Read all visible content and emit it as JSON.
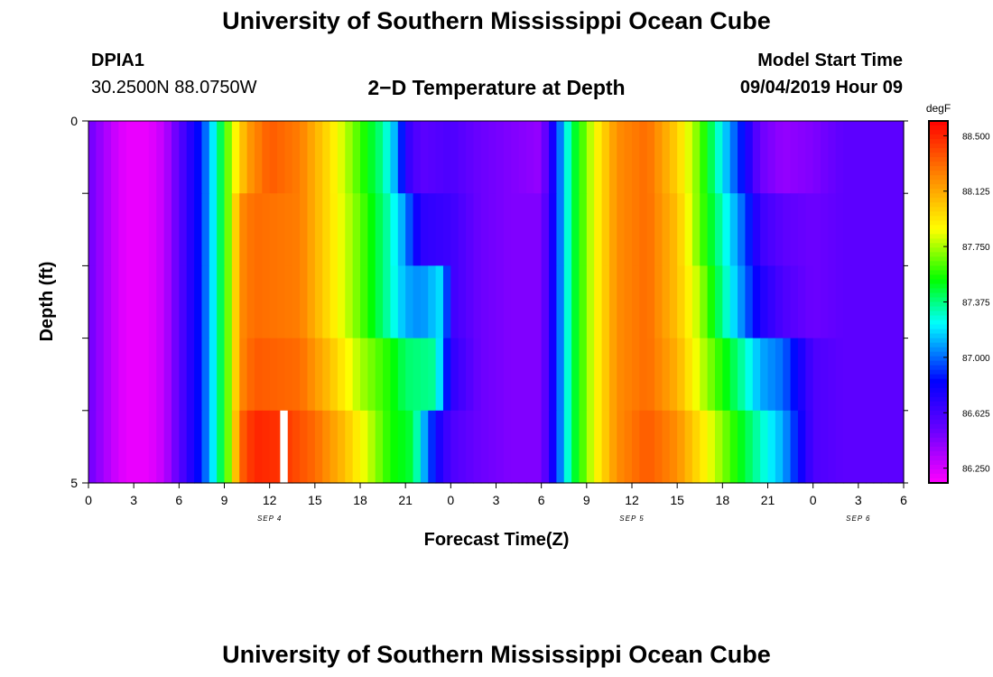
{
  "header": {
    "title": "University of Southern Mississippi Ocean Cube",
    "station_id": "DPIA1",
    "station_coords": "30.2500N 88.0750W",
    "subtitle": "2−D Temperature at Depth",
    "model_label": "Model Start Time",
    "model_time": "09/04/2019 Hour 09"
  },
  "footer": {
    "title": "University of Southern Mississippi Ocean Cube"
  },
  "chart_data": {
    "type": "heatmap",
    "title": "2−D Temperature at Depth",
    "xlabel": "Forecast Time(Z)",
    "ylabel": "Depth (ft)",
    "x_hours_from_start": [
      0,
      54
    ],
    "x_tick_labels": [
      "0",
      "3",
      "6",
      "9",
      "12",
      "15",
      "18",
      "21",
      "0",
      "3",
      "6",
      "9",
      "12",
      "15",
      "18",
      "21",
      "0",
      "3",
      "6"
    ],
    "date_labels": [
      {
        "label": "SEP 4",
        "hour": 12
      },
      {
        "label": "SEP 5",
        "hour": 36
      },
      {
        "label": "SEP 6",
        "hour": 51
      }
    ],
    "y_range": [
      0,
      5
    ],
    "y_tick_labels": [
      "0",
      "5"
    ],
    "depth_rows": 5,
    "colorbar": {
      "unit": "degF",
      "min": 86.15,
      "max": 88.6,
      "tick_values": [
        88.5,
        88.125,
        87.75,
        87.375,
        87.0,
        86.625,
        86.25
      ],
      "tick_labels": [
        "88.500",
        "88.125",
        "87.750",
        "87.375",
        "87.000",
        "86.625",
        "86.250"
      ]
    },
    "series": [
      {
        "name": "Depth 0-1 ft",
        "time_keys": [
          [
            0,
            86.5
          ],
          [
            1.5,
            86.3
          ],
          [
            2.5,
            86.2
          ],
          [
            4,
            86.2
          ],
          [
            5,
            86.3
          ],
          [
            6,
            86.55
          ],
          [
            7.5,
            86.9
          ],
          [
            8.5,
            87.3
          ],
          [
            9.5,
            87.8
          ],
          [
            10.5,
            88.15
          ],
          [
            12,
            88.35
          ],
          [
            14,
            88.25
          ],
          [
            16,
            87.95
          ],
          [
            18,
            87.6
          ],
          [
            19.5,
            87.35
          ],
          [
            20.5,
            87.05
          ],
          [
            21,
            86.7
          ],
          [
            22,
            86.55
          ],
          [
            24,
            86.6
          ],
          [
            26,
            86.5
          ],
          [
            28,
            86.45
          ],
          [
            30,
            86.4
          ],
          [
            31,
            86.9
          ],
          [
            32,
            87.4
          ],
          [
            33.5,
            87.85
          ],
          [
            35,
            88.2
          ],
          [
            37,
            88.3
          ],
          [
            39,
            88.0
          ],
          [
            40.5,
            87.65
          ],
          [
            42,
            87.2
          ],
          [
            43.5,
            86.8
          ],
          [
            44.5,
            86.5
          ],
          [
            46,
            86.4
          ],
          [
            48,
            86.45
          ],
          [
            50,
            86.55
          ],
          [
            54,
            86.55
          ]
        ]
      },
      {
        "name": "Depth 1-2 ft",
        "time_keys": [
          [
            0,
            86.5
          ],
          [
            1.5,
            86.3
          ],
          [
            2.5,
            86.2
          ],
          [
            4,
            86.2
          ],
          [
            5,
            86.3
          ],
          [
            6,
            86.55
          ],
          [
            7.5,
            86.9
          ],
          [
            8.5,
            87.3
          ],
          [
            9.5,
            87.8
          ],
          [
            10,
            88.2
          ],
          [
            11,
            88.3
          ],
          [
            14,
            88.25
          ],
          [
            16,
            87.95
          ],
          [
            18,
            87.65
          ],
          [
            20,
            87.3
          ],
          [
            21,
            87.05
          ],
          [
            22,
            86.7
          ],
          [
            24,
            86.65
          ],
          [
            26,
            86.5
          ],
          [
            28,
            86.45
          ],
          [
            30,
            86.45
          ],
          [
            31,
            86.9
          ],
          [
            32,
            87.4
          ],
          [
            33.5,
            87.85
          ],
          [
            35,
            88.2
          ],
          [
            37,
            88.3
          ],
          [
            39,
            88.05
          ],
          [
            40.5,
            87.65
          ],
          [
            42,
            87.3
          ],
          [
            43.5,
            86.95
          ],
          [
            44.5,
            86.65
          ],
          [
            46,
            86.55
          ],
          [
            48,
            86.5
          ],
          [
            50,
            86.55
          ],
          [
            54,
            86.55
          ]
        ]
      },
      {
        "name": "Depth 2-3 ft",
        "time_keys": [
          [
            0,
            86.5
          ],
          [
            1.5,
            86.3
          ],
          [
            2.5,
            86.2
          ],
          [
            4,
            86.2
          ],
          [
            5,
            86.3
          ],
          [
            6,
            86.55
          ],
          [
            7.5,
            86.9
          ],
          [
            8.5,
            87.3
          ],
          [
            9.5,
            87.8
          ],
          [
            10,
            88.2
          ],
          [
            11,
            88.3
          ],
          [
            14,
            88.25
          ],
          [
            16,
            87.95
          ],
          [
            18,
            87.65
          ],
          [
            20,
            87.3
          ],
          [
            21,
            87.1
          ],
          [
            22,
            87.05
          ],
          [
            23.5,
            87.2
          ],
          [
            24,
            86.65
          ],
          [
            26,
            86.5
          ],
          [
            28,
            86.45
          ],
          [
            30,
            86.45
          ],
          [
            31,
            86.9
          ],
          [
            32,
            87.4
          ],
          [
            33.5,
            87.85
          ],
          [
            35,
            88.2
          ],
          [
            37,
            88.3
          ],
          [
            39,
            88.05
          ],
          [
            40.5,
            87.75
          ],
          [
            42,
            87.35
          ],
          [
            43.5,
            87.0
          ],
          [
            44.5,
            86.75
          ],
          [
            46,
            86.6
          ],
          [
            48,
            86.5
          ],
          [
            50,
            86.55
          ],
          [
            54,
            86.55
          ]
        ]
      },
      {
        "name": "Depth 3-4 ft",
        "time_keys": [
          [
            0,
            86.5
          ],
          [
            1.5,
            86.3
          ],
          [
            2.5,
            86.2
          ],
          [
            4,
            86.2
          ],
          [
            5,
            86.3
          ],
          [
            6,
            86.55
          ],
          [
            7.5,
            86.9
          ],
          [
            8.5,
            87.3
          ],
          [
            9.5,
            87.8
          ],
          [
            10,
            88.2
          ],
          [
            11,
            88.35
          ],
          [
            14,
            88.3
          ],
          [
            16,
            88.05
          ],
          [
            18,
            87.75
          ],
          [
            20,
            87.55
          ],
          [
            21,
            87.4
          ],
          [
            23,
            87.35
          ],
          [
            24,
            86.7
          ],
          [
            26,
            86.5
          ],
          [
            28,
            86.45
          ],
          [
            30,
            86.45
          ],
          [
            31,
            86.9
          ],
          [
            32,
            87.4
          ],
          [
            33.5,
            87.85
          ],
          [
            35,
            88.2
          ],
          [
            37,
            88.3
          ],
          [
            39,
            88.1
          ],
          [
            40.5,
            87.8
          ],
          [
            42,
            87.55
          ],
          [
            43.5,
            87.3
          ],
          [
            44.5,
            87.1
          ],
          [
            46,
            87.0
          ],
          [
            48,
            86.6
          ],
          [
            50,
            86.55
          ],
          [
            54,
            86.55
          ]
        ]
      },
      {
        "name": "Depth 4-5 ft",
        "time_keys": [
          [
            0,
            86.5
          ],
          [
            1.5,
            86.3
          ],
          [
            2.5,
            86.2
          ],
          [
            4,
            86.2
          ],
          [
            5,
            86.3
          ],
          [
            6,
            86.55
          ],
          [
            7.5,
            86.9
          ],
          [
            8.5,
            87.3
          ],
          [
            9.5,
            87.8
          ],
          [
            10,
            88.3
          ],
          [
            11,
            88.5
          ],
          [
            13,
            88.45
          ],
          [
            15,
            88.3
          ],
          [
            17,
            88.05
          ],
          [
            18.5,
            87.8
          ],
          [
            20,
            87.55
          ],
          [
            21.5,
            87.45
          ],
          [
            22,
            87.2
          ],
          [
            23,
            86.8
          ],
          [
            24,
            86.6
          ],
          [
            26,
            86.5
          ],
          [
            28,
            86.45
          ],
          [
            30,
            86.45
          ],
          [
            31,
            86.9
          ],
          [
            32,
            87.4
          ],
          [
            33.5,
            87.85
          ],
          [
            35,
            88.2
          ],
          [
            37,
            88.35
          ],
          [
            39,
            88.2
          ],
          [
            40.5,
            87.95
          ],
          [
            42,
            87.7
          ],
          [
            43.5,
            87.45
          ],
          [
            44.5,
            87.3
          ],
          [
            46,
            87.1
          ],
          [
            48,
            86.6
          ],
          [
            50,
            86.55
          ],
          [
            54,
            86.55
          ]
        ]
      }
    ]
  }
}
